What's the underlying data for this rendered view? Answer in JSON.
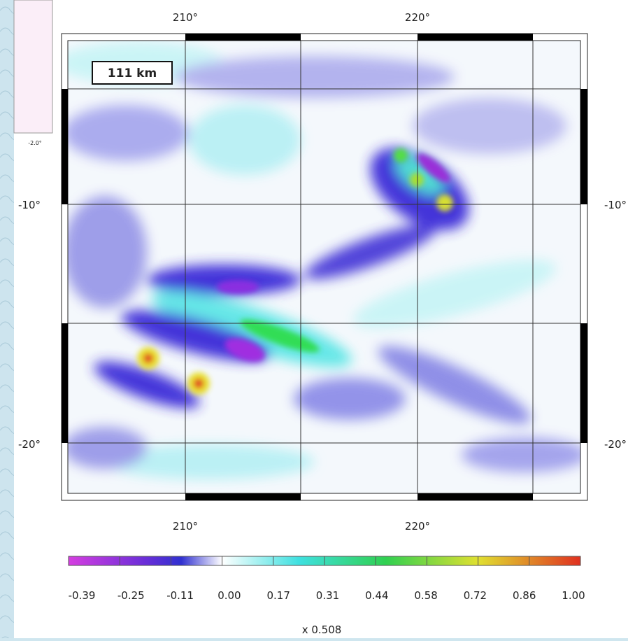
{
  "map": {
    "scale_label": "111 km",
    "inset_label": "-2.0°",
    "x_ticks": [
      "210°",
      "220°"
    ],
    "y_ticks": [
      "-10°",
      "-20°"
    ],
    "colorbar": {
      "ticks": [
        "-0.39",
        "-0.25",
        "-0.11",
        "0.00",
        "0.17",
        "0.31",
        "0.44",
        "0.58",
        "0.72",
        "0.86",
        "1.00"
      ],
      "multiplier": "x 0.508"
    }
  }
}
